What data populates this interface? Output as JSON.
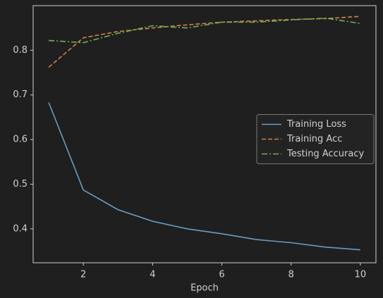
{
  "chart_data": {
    "type": "line",
    "x": [
      1,
      2,
      3,
      4,
      5,
      6,
      7,
      8,
      9,
      10
    ],
    "xlabel": "Epoch",
    "series": [
      {
        "name": "Training Loss",
        "color": "#6a9cc0",
        "dash": "solid",
        "values": [
          0.683,
          0.487,
          0.443,
          0.417,
          0.4,
          0.389,
          0.376,
          0.369,
          0.359,
          0.353
        ]
      },
      {
        "name": "Training Acc",
        "color": "#d0814f",
        "dash": "dashed",
        "values": [
          0.762,
          0.828,
          0.842,
          0.85,
          0.857,
          0.863,
          0.866,
          0.869,
          0.871,
          0.876
        ]
      },
      {
        "name": "Testing Accuracy",
        "color": "#6fb052",
        "dash": "dashdot",
        "values": [
          0.822,
          0.817,
          0.838,
          0.855,
          0.85,
          0.863,
          0.863,
          0.868,
          0.872,
          0.86
        ]
      }
    ],
    "xlim": [
      0.55,
      10.45
    ],
    "xticks": [
      2,
      4,
      6,
      8,
      10
    ],
    "ylim": [
      0.324,
      0.9
    ],
    "yticks": [
      0.4,
      0.5,
      0.6,
      0.7,
      0.8
    ],
    "grid": false,
    "legend": "center right"
  }
}
